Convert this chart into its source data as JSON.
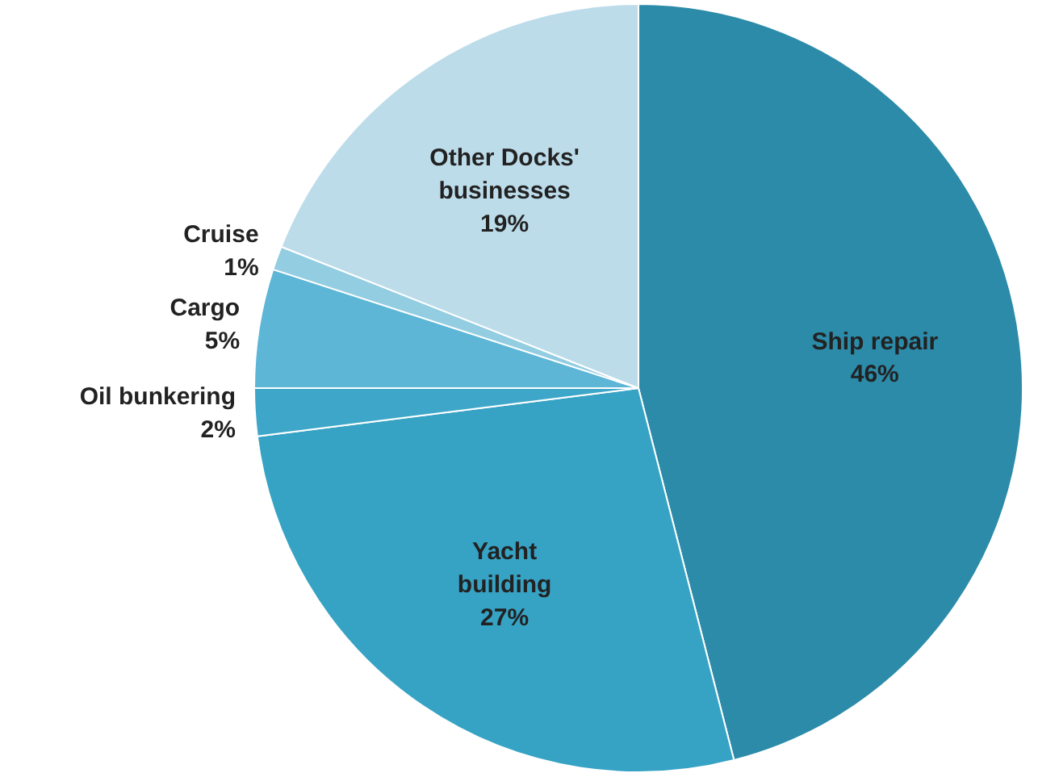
{
  "chart_data": {
    "type": "pie",
    "categories": [
      "Ship repair",
      "Yacht building",
      "Oil bunkering",
      "Cargo",
      "Cruise",
      "Other Docks' businesses"
    ],
    "values": [
      46,
      27,
      2,
      5,
      1,
      19
    ],
    "value_labels": [
      "46%",
      "27%",
      "2%",
      "5%",
      "1%",
      "19%"
    ],
    "colors": [
      "#2b8ba9",
      "#36a3c5",
      "#3ea7c9",
      "#5db6d6",
      "#92cde2",
      "#bddcea"
    ]
  }
}
